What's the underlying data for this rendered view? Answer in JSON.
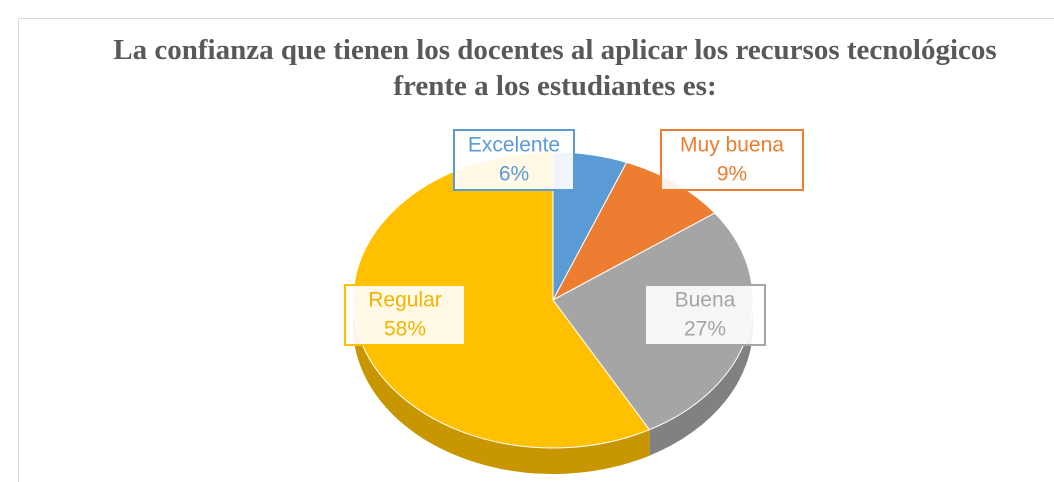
{
  "chart_data": {
    "type": "pie",
    "title": "La confianza que tienen los docentes al aplicar los recursos tecnológicos frente a los estudiantes es:",
    "categories": [
      "Excelente",
      "Muy buena",
      "Buena",
      "Regular"
    ],
    "values": [
      6,
      9,
      27,
      58
    ],
    "value_labels": [
      "6%",
      "9%",
      "27%",
      "58%"
    ],
    "colors": [
      "#5b9bd5",
      "#ed7d31",
      "#a5a5a5",
      "#ffc000"
    ]
  }
}
